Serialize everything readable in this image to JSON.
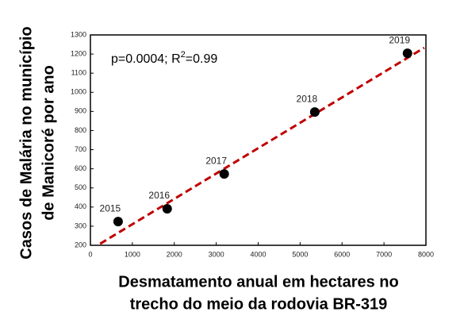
{
  "chart_data": {
    "type": "scatter",
    "x_label": [
      "Desmatamento anual em hectares no",
      "trecho do meio da rodovia BR-319"
    ],
    "y_label": [
      "Casos de Malária no município",
      "de Manicoré por ano"
    ],
    "annotation": [
      "p=0.0004; R",
      "2",
      "=0.99"
    ],
    "points": {
      "x": [
        660,
        1830,
        3190,
        5350,
        7560
      ],
      "y": [
        324,
        391,
        573,
        897,
        1204
      ],
      "labels": [
        "2015",
        "2016",
        "2017",
        "2018",
        "2019"
      ],
      "color": "#000000"
    },
    "trend_line": {
      "x": [
        230,
        7960
      ],
      "y": [
        208,
        1233
      ],
      "color": "#c00000"
    },
    "xlim": [
      0,
      8000
    ],
    "xticks": [
      0,
      1000,
      2000,
      3000,
      4000,
      5000,
      6000,
      7000,
      8000
    ],
    "ylim": [
      200,
      1300
    ],
    "yticks": [
      200,
      300,
      400,
      500,
      600,
      700,
      800,
      900,
      1000,
      1100,
      1200,
      1300
    ]
  }
}
